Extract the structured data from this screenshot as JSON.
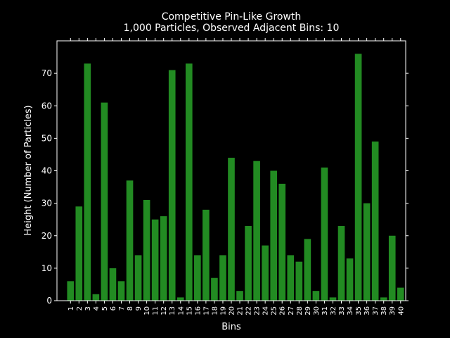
{
  "chart_data": {
    "type": "bar",
    "title": "Competitive Pin-Like Growth",
    "subtitle": "1,000 Particles, Observed Adjacent Bins: 10",
    "xlabel": "Bins",
    "ylabel": "Height (Number of Particles)",
    "categories": [
      "1",
      "2",
      "3",
      "4",
      "5",
      "6",
      "7",
      "8",
      "9",
      "10",
      "11",
      "12",
      "13",
      "14",
      "15",
      "16",
      "17",
      "18",
      "19",
      "20",
      "21",
      "22",
      "23",
      "24",
      "25",
      "26",
      "27",
      "28",
      "29",
      "30",
      "31",
      "32",
      "33",
      "34",
      "35",
      "36",
      "37",
      "38",
      "39",
      "40"
    ],
    "values": [
      6,
      29,
      73,
      2,
      61,
      10,
      6,
      37,
      14,
      31,
      25,
      26,
      71,
      1,
      73,
      14,
      28,
      7,
      14,
      44,
      3,
      23,
      43,
      17,
      40,
      36,
      14,
      12,
      19,
      3,
      41,
      1,
      23,
      13,
      76,
      30,
      49,
      1,
      20,
      4
    ],
    "xlim": [
      -0.6,
      40.6
    ],
    "ylim": [
      0,
      80
    ],
    "yticks": [
      0,
      10,
      20,
      30,
      40,
      50,
      60,
      70
    ],
    "grid": false,
    "legend": "none",
    "colors": {
      "bar": "#228b22",
      "background": "#000000",
      "axes": "#ffffff"
    }
  }
}
